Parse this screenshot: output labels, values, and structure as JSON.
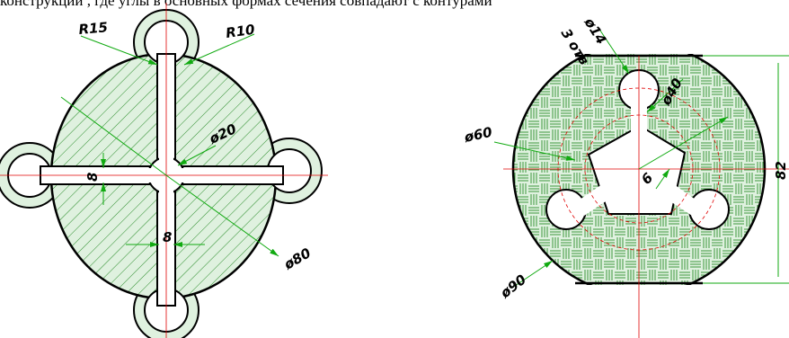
{
  "caption": "конструкции , где углы в основных формах сечения совпадают с контурами",
  "colors": {
    "outline": "#000000",
    "fill": "#dff1df",
    "hatch": "#2a8c2a",
    "dimension": "#11aa11",
    "centerline": "#e00000",
    "background": "#ffffff"
  },
  "left_view": {
    "labels": {
      "r15": "R15",
      "r10": "R10",
      "d20": "ø20",
      "w8_vertical": "8",
      "w8_horizontal": "8",
      "d80": "ø80"
    }
  },
  "right_view": {
    "labels": {
      "d14": "ø14",
      "holes": "3 отв",
      "d40": "ø40",
      "d60": "ø60",
      "depth6": "6",
      "d90": "ø90",
      "h82": "82"
    }
  }
}
